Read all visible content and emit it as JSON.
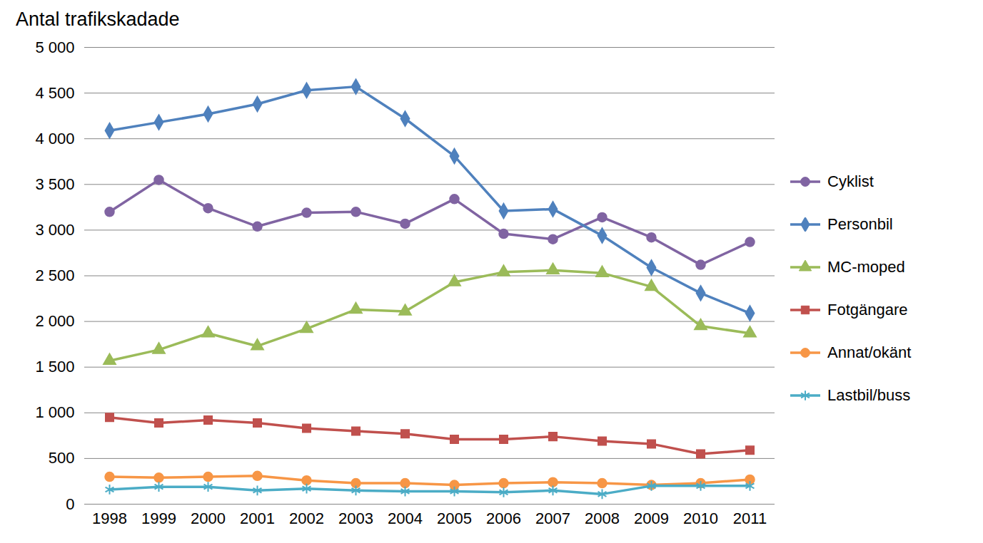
{
  "chart_data": {
    "type": "line",
    "title": "Antal trafikskadade",
    "categories": [
      "1998",
      "1999",
      "2000",
      "2001",
      "2002",
      "2003",
      "2004",
      "2005",
      "2006",
      "2007",
      "2008",
      "2009",
      "2010",
      "2011"
    ],
    "series": [
      {
        "name": "Cyklist",
        "color": "#8064a2",
        "marker": "circle",
        "values": [
          3200,
          3550,
          3240,
          3040,
          3190,
          3200,
          3070,
          3340,
          2960,
          2900,
          3140,
          2920,
          2620,
          2870
        ]
      },
      {
        "name": "Personbil",
        "color": "#4f81bd",
        "marker": "diamond",
        "values": [
          4090,
          4180,
          4270,
          4380,
          4530,
          4570,
          4220,
          3810,
          3210,
          3230,
          2940,
          2590,
          2310,
          2090
        ]
      },
      {
        "name": "MC-moped",
        "color": "#9bbb59",
        "marker": "triangle",
        "values": [
          1570,
          1690,
          1870,
          1730,
          1920,
          2130,
          2110,
          2430,
          2540,
          2560,
          2530,
          2380,
          1950,
          1870
        ]
      },
      {
        "name": "Fotgängare",
        "color": "#c0504d",
        "marker": "square",
        "values": [
          950,
          890,
          920,
          890,
          830,
          800,
          770,
          710,
          710,
          740,
          690,
          660,
          550,
          590
        ]
      },
      {
        "name": "Annat/okänt",
        "color": "#f79646",
        "marker": "circle",
        "values": [
          300,
          290,
          300,
          310,
          260,
          230,
          230,
          210,
          230,
          240,
          230,
          210,
          230,
          270
        ]
      },
      {
        "name": "Lastbil/buss",
        "color": "#4bacc6",
        "marker": "asterisk",
        "values": [
          160,
          190,
          190,
          150,
          170,
          150,
          140,
          140,
          130,
          150,
          110,
          200,
          200,
          200
        ]
      }
    ],
    "ylim": [
      0,
      5000
    ],
    "yticks": [
      0,
      500,
      {
        "value": 1000,
        "label": "1 000"
      },
      {
        "value": 1500,
        "label": "1 500"
      },
      {
        "value": 2000,
        "label": "2 000"
      },
      {
        "value": 2500,
        "label": "2 500"
      },
      {
        "value": 3000,
        "label": "3 000"
      },
      {
        "value": 3500,
        "label": "3 500"
      },
      {
        "value": 4000,
        "label": "4 000"
      },
      {
        "value": 4500,
        "label": "4 500"
      },
      {
        "value": 5000,
        "label": "5 000"
      }
    ],
    "grid": true,
    "legend": "right"
  }
}
